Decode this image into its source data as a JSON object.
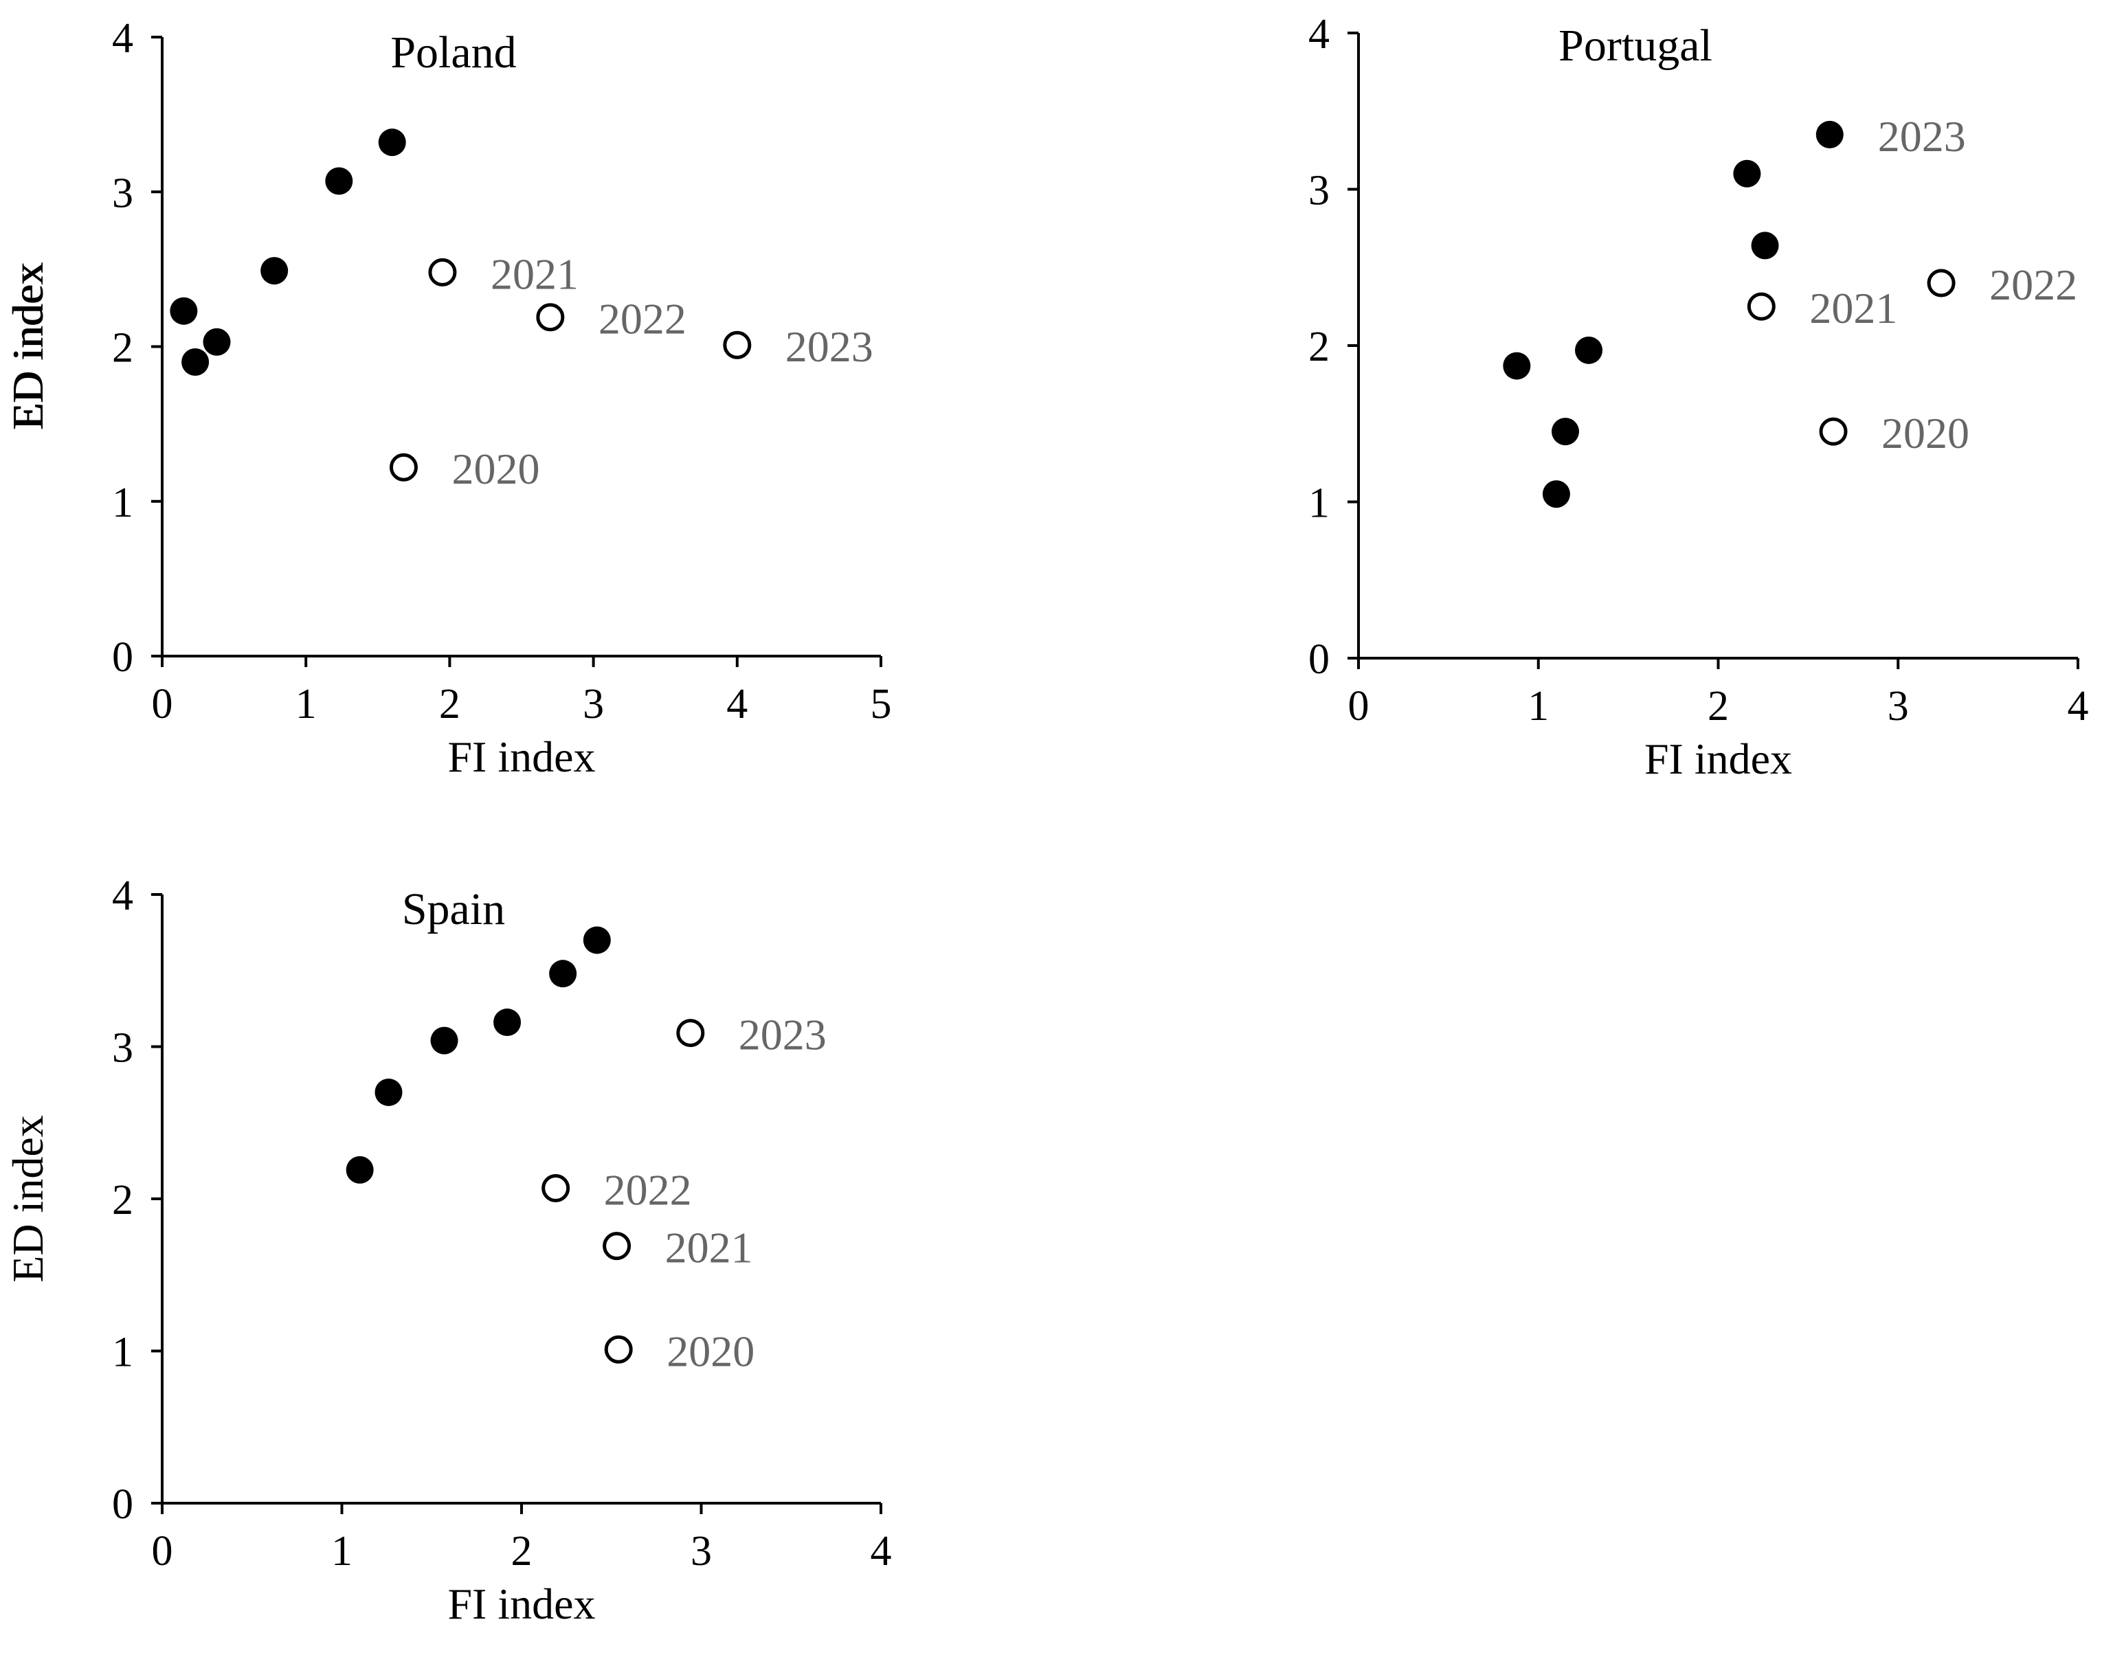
{
  "colors": {
    "axis": "#000000",
    "filled_marker": "#000000",
    "open_marker_fill": "#ffffff",
    "open_marker_stroke": "#000000",
    "year_label": "#666666"
  },
  "chart_data": [
    {
      "type": "scatter",
      "title": "Poland",
      "xlabel": "FI index",
      "ylabel": "ED index",
      "xlim": [
        0,
        5
      ],
      "ylim": [
        0,
        4
      ],
      "xticks": [
        0,
        1,
        2,
        3,
        4,
        5
      ],
      "yticks": [
        0,
        1,
        2,
        3,
        4
      ],
      "series": [
        {
          "name": "filled",
          "marker": "filled-circle",
          "points": [
            [
              0.15,
              2.23
            ],
            [
              0.23,
              1.9
            ],
            [
              0.38,
              2.03
            ],
            [
              0.78,
              2.49
            ],
            [
              1.23,
              3.07
            ],
            [
              1.6,
              3.32
            ]
          ]
        },
        {
          "name": "open",
          "marker": "open-circle",
          "points": [
            {
              "x": 1.68,
              "y": 1.22,
              "label": "2020"
            },
            {
              "x": 1.95,
              "y": 2.48,
              "label": "2021"
            },
            {
              "x": 2.7,
              "y": 2.19,
              "label": "2022"
            },
            {
              "x": 4.0,
              "y": 2.01,
              "label": "2023"
            }
          ]
        }
      ]
    },
    {
      "type": "scatter",
      "title": "Portugal",
      "xlabel": "FI index",
      "ylabel": "ED index",
      "xlim": [
        0,
        4
      ],
      "ylim": [
        0,
        4
      ],
      "xticks": [
        0,
        1,
        2,
        3,
        4
      ],
      "yticks": [
        0,
        1,
        2,
        3,
        4
      ],
      "series": [
        {
          "name": "filled",
          "marker": "filled-circle",
          "points": [
            [
              0.88,
              1.87
            ],
            [
              1.1,
              1.05
            ],
            [
              1.15,
              1.45
            ],
            [
              1.28,
              1.97
            ],
            [
              2.16,
              3.1
            ],
            [
              2.26,
              2.64
            ],
            [
              2.62,
              3.35
            ]
          ]
        },
        {
          "name": "open",
          "marker": "open-circle",
          "points": [
            {
              "x": 2.64,
              "y": 1.45,
              "label": "2020"
            },
            {
              "x": 2.24,
              "y": 2.25,
              "label": "2021"
            },
            {
              "x": 3.24,
              "y": 2.4,
              "label": "2022"
            },
            {
              "x": 2.62,
              "y": 3.35,
              "label": "2023",
              "marker_hidden": true
            }
          ]
        }
      ]
    },
    {
      "type": "scatter",
      "title": "Spain",
      "xlabel": "FI index",
      "ylabel": "ED index",
      "xlim": [
        0,
        4
      ],
      "ylim": [
        0,
        4
      ],
      "xticks": [
        0,
        1,
        2,
        3,
        4
      ],
      "yticks": [
        0,
        1,
        2,
        3,
        4
      ],
      "series": [
        {
          "name": "filled",
          "marker": "filled-circle",
          "points": [
            [
              1.1,
              2.19
            ],
            [
              1.26,
              2.7
            ],
            [
              1.57,
              3.04
            ],
            [
              1.92,
              3.16
            ],
            [
              2.23,
              3.48
            ],
            [
              2.42,
              3.7
            ]
          ]
        },
        {
          "name": "open",
          "marker": "open-circle",
          "points": [
            {
              "x": 2.54,
              "y": 1.01,
              "label": "2020"
            },
            {
              "x": 2.53,
              "y": 1.69,
              "label": "2021"
            },
            {
              "x": 2.19,
              "y": 2.07,
              "label": "2022"
            },
            {
              "x": 2.94,
              "y": 3.09,
              "label": "2023"
            }
          ]
        }
      ]
    }
  ]
}
